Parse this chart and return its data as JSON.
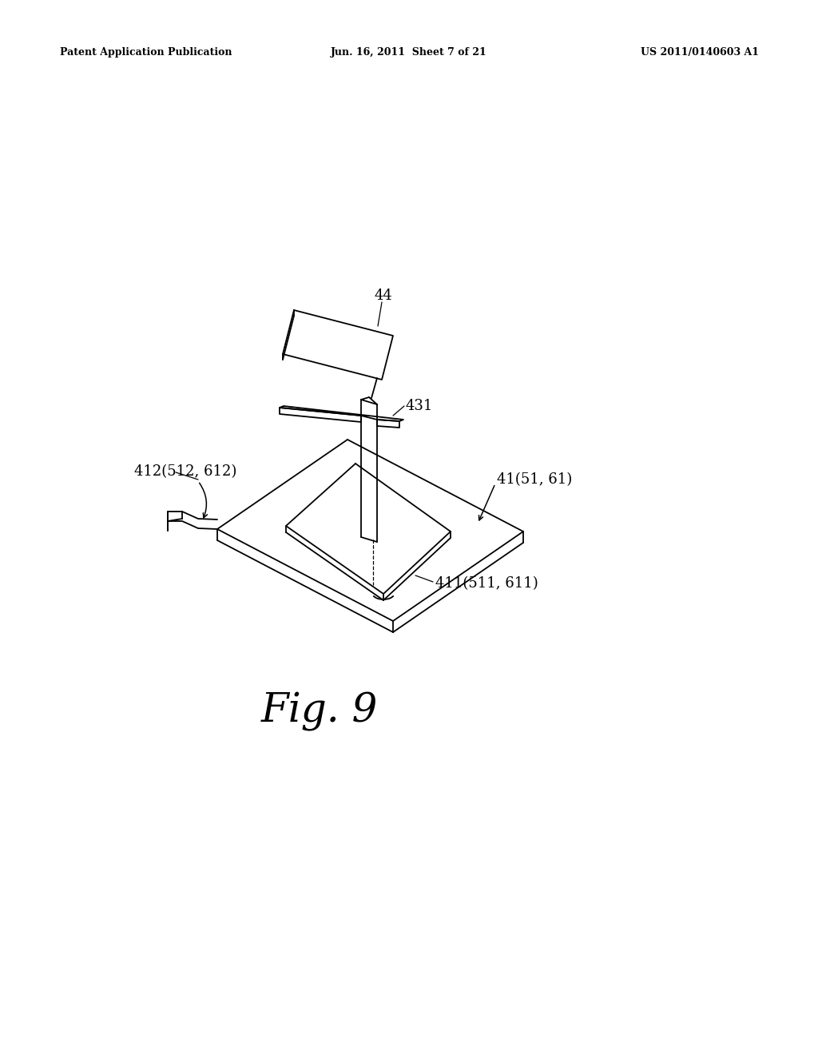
{
  "background_color": "#ffffff",
  "header_left": "Patent Application Publication",
  "header_center": "Jun. 16, 2011  Sheet 7 of 21",
  "header_right": "US 2011/0140603 A1",
  "figure_label": "Fig. 9",
  "label_44": "44",
  "label_431": "431",
  "label_412": "412(512, 612)",
  "label_41": "41(51, 61)",
  "label_411": "411(511, 611)",
  "line_color": "#000000",
  "line_width": 1.3
}
